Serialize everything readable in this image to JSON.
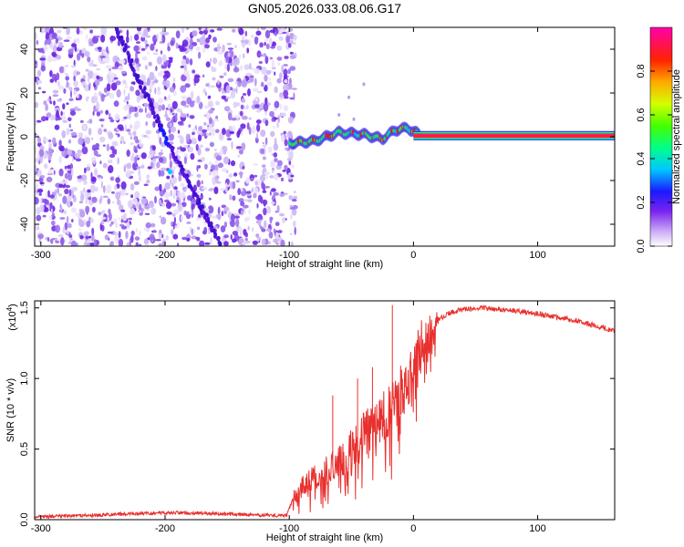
{
  "title": "GN05.2026.033.08.06.G17",
  "chart_data": [
    {
      "type": "heatmap",
      "xlabel": "Height of straight line (km)",
      "ylabel": "Frequency (Hz)",
      "xlim": [
        -305,
        162
      ],
      "ylim": [
        -50,
        50
      ],
      "xticks": [
        -300,
        -200,
        -100,
        0,
        100
      ],
      "xtick_labels": [
        "-300",
        "-200",
        "-100",
        "0",
        "100"
      ],
      "yticks": [
        -40,
        -20,
        0,
        20,
        40
      ],
      "ytick_labels": [
        "-40",
        "-20",
        "0",
        "20",
        "40"
      ],
      "colorbar": {
        "label": "Normalized spectral amplitude",
        "range": [
          0,
          1
        ],
        "ticks": [
          0.0,
          0.2,
          0.4,
          0.6,
          0.8
        ],
        "tick_labels": [
          "0.0",
          "0.2",
          "0.4",
          "0.6",
          "0.8"
        ]
      },
      "noise_region_x": [
        -305,
        -95
      ],
      "occulted_track": {
        "x": [
          -240,
          -200,
          -155
        ],
        "freq": [
          50,
          0,
          -50
        ]
      },
      "transition_track": {
        "x": [
          -100,
          -80,
          -60,
          -40,
          -25,
          -15,
          -5,
          5
        ],
        "freq": [
          -3,
          -2,
          2,
          1,
          -1,
          3,
          4,
          1
        ]
      },
      "tone": {
        "x_start": 0,
        "x_end": 162,
        "freq": 0.5
      }
    },
    {
      "type": "line",
      "xlabel": "Height of straight line (km)",
      "ylabel": "SNR (10 * v/v)",
      "scale_label": "(x10",
      "scale_exp": "4",
      "scale_close": ")",
      "xlim": [
        -305,
        162
      ],
      "ylim": [
        0,
        1.55
      ],
      "xticks": [
        -300,
        -200,
        -100,
        0,
        100
      ],
      "xtick_labels": [
        "-300",
        "-200",
        "-100",
        "0",
        "100"
      ],
      "yticks": [
        0.0,
        0.5,
        1.0,
        1.5
      ],
      "ytick_labels": [
        "0.0",
        "0.5",
        "1.0",
        "1.5"
      ],
      "series_color": "#e8302e",
      "profile_x": [
        -305,
        -260,
        -230,
        -200,
        -150,
        -120,
        -102,
        -97,
        -85,
        -75,
        -60,
        -50,
        -40,
        -30,
        -20,
        -10,
        0,
        10,
        20,
        30,
        40,
        50,
        70,
        100,
        130,
        162
      ],
      "profile_y": [
        0.02,
        0.03,
        0.04,
        0.05,
        0.04,
        0.03,
        0.03,
        0.15,
        0.28,
        0.32,
        0.4,
        0.5,
        0.6,
        0.68,
        0.78,
        0.9,
        1.08,
        1.3,
        1.42,
        1.47,
        1.49,
        1.5,
        1.49,
        1.46,
        1.41,
        1.34
      ],
      "spikes": [
        {
          "x": -17,
          "y": 1.52
        },
        {
          "x": -45,
          "y": 1.0
        },
        {
          "x": -65,
          "y": 0.88
        },
        {
          "x": -33,
          "y": 1.08
        }
      ]
    }
  ]
}
